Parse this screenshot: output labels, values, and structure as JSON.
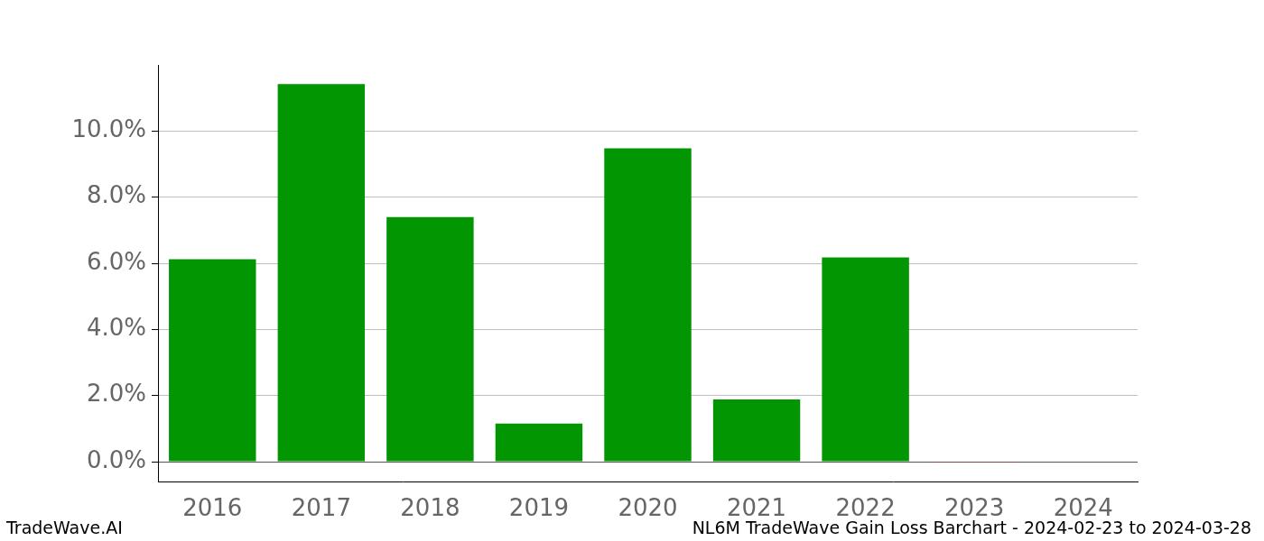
{
  "chart_data": {
    "type": "bar",
    "title": "NL6M TradeWave Gain Loss Barchart - 2024-02-23 to 2024-03-28",
    "annotations": [
      "TradeWave.AI"
    ],
    "categories": [
      "2016",
      "2017",
      "2018",
      "2019",
      "2020",
      "2021",
      "2022",
      "2023",
      "2024"
    ],
    "values": [
      6.12,
      11.42,
      7.4,
      1.15,
      9.48,
      1.88,
      6.18,
      -0.02,
      0
    ],
    "colors": [
      "#029602",
      "#029602",
      "#029602",
      "#029602",
      "#029602",
      "#029602",
      "#029602",
      "#d62728",
      "#029602"
    ],
    "ylim": [
      -0.6,
      12.0
    ],
    "yticks": [
      {
        "value": 0,
        "label": "0.0%"
      },
      {
        "value": 2,
        "label": "2.0%"
      },
      {
        "value": 4,
        "label": "4.0%"
      },
      {
        "value": 6,
        "label": "6.0%"
      },
      {
        "value": 8,
        "label": "8.0%"
      },
      {
        "value": 10,
        "label": "10.0%"
      }
    ],
    "grid": true
  }
}
